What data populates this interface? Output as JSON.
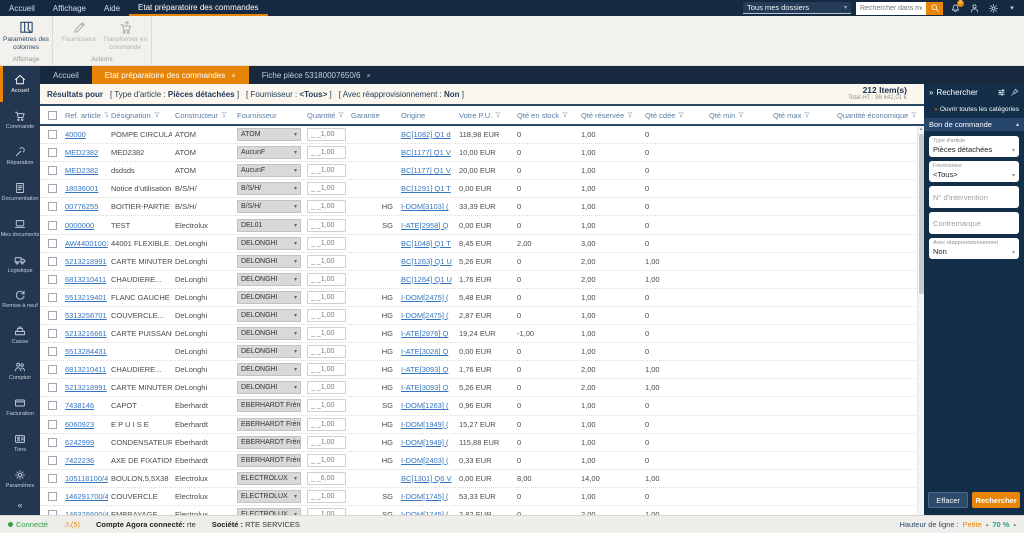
{
  "icons": {
    "close": "×",
    "caret_down": "▾",
    "caret_up": "▴",
    "chevrons_right": "»",
    "collapse": "«",
    "warning": "⚠"
  },
  "menubar": {
    "items": [
      "Accueil",
      "Affichage",
      "Aide"
    ],
    "active_item": "Etat préparatoire des commandes",
    "folder_filter": "Tous mes dossiers",
    "search_placeholder": "Rechercher dans mes dossiers",
    "bell_badge": "8"
  },
  "ribbon": {
    "groups": [
      {
        "label": "Affichage",
        "buttons": [
          {
            "label": "Paramètres des colonnes",
            "icon": "columns-settings-icon",
            "enabled": true
          }
        ]
      },
      {
        "label": "Actions",
        "buttons": [
          {
            "label": "Fournisseur",
            "icon": "pencil-icon",
            "enabled": false
          },
          {
            "label": "Transformer en commande",
            "icon": "cart-plus-icon",
            "enabled": false
          }
        ]
      }
    ]
  },
  "tabs": [
    {
      "label": "Accueil",
      "active": false,
      "closable": false
    },
    {
      "label": "Etat préparatoire des commandes",
      "active": true,
      "closable": true
    },
    {
      "label": "Fiche pièce 53180007650/6",
      "active": false,
      "closable": true
    }
  ],
  "sidebar": {
    "items": [
      {
        "label": "Accueil",
        "icon": "home-icon",
        "active": true
      },
      {
        "label": "Commande",
        "icon": "cart-icon",
        "active": false
      },
      {
        "label": "Réparation",
        "icon": "wrench-icon",
        "active": false
      },
      {
        "label": "Documentation",
        "icon": "document-icon",
        "active": false
      },
      {
        "label": "Mes documents",
        "icon": "laptop-icon",
        "active": false
      },
      {
        "label": "Logistique",
        "icon": "truck-icon",
        "active": false
      },
      {
        "label": "Remise à neuf",
        "icon": "renew-icon",
        "active": false
      },
      {
        "label": "Caisse",
        "icon": "cash-register-icon",
        "active": false
      },
      {
        "label": "Comptoir",
        "icon": "people-icon",
        "active": false
      },
      {
        "label": "Facturation",
        "icon": "credit-card-icon",
        "active": false
      },
      {
        "label": "Tiers",
        "icon": "id-card-icon",
        "active": false
      },
      {
        "label": "Paramètres",
        "icon": "gear-icon",
        "active": false
      }
    ]
  },
  "results_bar": {
    "prefix": "Résultats pour",
    "bracket_open": "[",
    "bracket_close": "]",
    "filters": [
      {
        "label": "Type d'article :",
        "value": "Pièces détachées"
      },
      {
        "label": "Fournisseur :",
        "value": "<Tous>"
      },
      {
        "label": "Avec réapprovisionnement :",
        "value": "Non"
      }
    ],
    "count": "212 Item(s)",
    "total": "Total HT : 86 642,01 €"
  },
  "table": {
    "columns": [
      {
        "label": "",
        "filter": false
      },
      {
        "label": "Ref. article",
        "filter": true
      },
      {
        "label": "Désignation",
        "filter": true
      },
      {
        "label": "Constructeur",
        "filter": true
      },
      {
        "label": "Fournisseur",
        "filter": false
      },
      {
        "label": "Quantité",
        "filter": true
      },
      {
        "label": "Garantie",
        "filter": false
      },
      {
        "label": "Origine",
        "filter": false
      },
      {
        "label": "Votre P.U.",
        "filter": true
      },
      {
        "label": "Qté en stock",
        "filter": true
      },
      {
        "label": "Qté réservée",
        "filter": true
      },
      {
        "label": "Qté cdée",
        "filter": true
      },
      {
        "label": "Qté min",
        "filter": true
      },
      {
        "label": "Qté max",
        "filter": true
      },
      {
        "label": "Quantité économique",
        "filter": true
      }
    ],
    "rows": [
      {
        "ref": "40000",
        "designation": "POMPE CIRCULATEAU...",
        "constructeur": "ATOM",
        "fournisseur": "ATOM",
        "quantite": "_ _1,00",
        "garantie": "",
        "origine": "BC[1082] Q1 d",
        "pu": "118,98 EUR",
        "stock": "0",
        "reservee": "1,00",
        "cdee": "0",
        "min": "",
        "max": "",
        "eco": ""
      },
      {
        "ref": "MED2382",
        "designation": "MED2382",
        "constructeur": "ATOM",
        "fournisseur": "AucunF",
        "quantite": "_ _1,00",
        "garantie": "",
        "origine": "BC[1177] Q1 V",
        "pu": "10,00 EUR",
        "stock": "0",
        "reservee": "1,00",
        "cdee": "0",
        "min": "",
        "max": "",
        "eco": ""
      },
      {
        "ref": "MED2382",
        "designation": "dsdsds",
        "constructeur": "ATOM",
        "fournisseur": "AucunF",
        "quantite": "_ _1,00",
        "garantie": "",
        "origine": "BC[1177] Q1 V",
        "pu": "20,00 EUR",
        "stock": "0",
        "reservee": "1,00",
        "cdee": "0",
        "min": "",
        "max": "",
        "eco": ""
      },
      {
        "ref": "18036001",
        "designation": "Notice d'utilisation",
        "constructeur": "B/S/H/",
        "fournisseur": "B/S/H/",
        "quantite": "_ _1,00",
        "garantie": "",
        "origine": "BC[1291] Q1 T",
        "pu": "0,00 EUR",
        "stock": "0",
        "reservee": "1,00",
        "cdee": "0",
        "min": "",
        "max": "",
        "eco": ""
      },
      {
        "ref": "00776255",
        "designation": "BOITIER-PARTIE AVANT",
        "constructeur": "B/S/H/",
        "fournisseur": "B/S/H/",
        "quantite": "_ _1,00",
        "garantie": "HG",
        "origine": "I-DOM[3103] (",
        "pu": "33,39 EUR",
        "stock": "0",
        "reservee": "1,00",
        "cdee": "0",
        "min": "",
        "max": "",
        "eco": ""
      },
      {
        "ref": "0000000",
        "designation": "TEST",
        "constructeur": "Electrolux",
        "fournisseur": "DEL01",
        "quantite": "_ _1,00",
        "garantie": "SG",
        "origine": "I-ATE[2958] Q",
        "pu": "0,00 EUR",
        "stock": "0",
        "reservee": "1,00",
        "cdee": "0",
        "min": "",
        "max": "",
        "eco": ""
      },
      {
        "ref": "AW44001001",
        "designation": "44001 FLEXIBLE...",
        "constructeur": "DeLonghi",
        "fournisseur": "DELONGHI",
        "quantite": "_ _1,00",
        "garantie": "",
        "origine": "BC[1048] Q1 T",
        "pu": "8,45 EUR",
        "stock": "2,00",
        "reservee": "3,00",
        "cdee": "0",
        "min": "",
        "max": "",
        "eco": ""
      },
      {
        "ref": "5213218991",
        "designation": "CARTE MINUTERIE...",
        "constructeur": "DeLonghi",
        "fournisseur": "DELONGHI",
        "quantite": "_ _1,00",
        "garantie": "",
        "origine": "BC[1263] Q1 U",
        "pu": "5,26 EUR",
        "stock": "0",
        "reservee": "2,00",
        "cdee": "1,00",
        "min": "",
        "max": "",
        "eco": ""
      },
      {
        "ref": "6813210411",
        "designation": "CHAUDIERE...",
        "constructeur": "DeLonghi",
        "fournisseur": "DELONGHI",
        "quantite": "_ _1,00",
        "garantie": "",
        "origine": "BC[1264] Q1 U",
        "pu": "1,76 EUR",
        "stock": "0",
        "reservee": "2,00",
        "cdee": "1,00",
        "min": "",
        "max": "",
        "eco": ""
      },
      {
        "ref": "5513219401",
        "designation": "FLANC GAUCHE",
        "constructeur": "DeLonghi",
        "fournisseur": "DELONGHI",
        "quantite": "_ _1,00",
        "garantie": "HG",
        "origine": "I-DOM[2475] (",
        "pu": "5,48 EUR",
        "stock": "0",
        "reservee": "1,00",
        "cdee": "0",
        "min": "",
        "max": "",
        "eco": ""
      },
      {
        "ref": "5313256701",
        "designation": "COUVERCLE...",
        "constructeur": "DeLonghi",
        "fournisseur": "DELONGHI",
        "quantite": "_ _1,00",
        "garantie": "HG",
        "origine": "I-DOM[2475] (",
        "pu": "2,87 EUR",
        "stock": "0",
        "reservee": "1,00",
        "cdee": "0",
        "min": "",
        "max": "",
        "eco": ""
      },
      {
        "ref": "5213216661",
        "designation": "CARTE PUISSANCE...",
        "constructeur": "DeLonghi",
        "fournisseur": "DELONGHI",
        "quantite": "_ _1,00",
        "garantie": "HG",
        "origine": "I-ATE[2976] Q",
        "pu": "19,24 EUR",
        "stock": "-1,00",
        "reservee": "1,00",
        "cdee": "0",
        "min": "",
        "max": "",
        "eco": ""
      },
      {
        "ref": "5513284431",
        "designation": "",
        "constructeur": "DeLonghi",
        "fournisseur": "DELONGHI",
        "quantite": "_ _1,00",
        "garantie": "HG",
        "origine": "I-ATE[3028] Q",
        "pu": "0,00 EUR",
        "stock": "0",
        "reservee": "1,00",
        "cdee": "0",
        "min": "",
        "max": "",
        "eco": ""
      },
      {
        "ref": "6813210411",
        "designation": "CHAUDIERE...",
        "constructeur": "DeLonghi",
        "fournisseur": "DELONGHI",
        "quantite": "_ _1,00",
        "garantie": "HG",
        "origine": "I-ATE[3093] Q",
        "pu": "1,76 EUR",
        "stock": "0",
        "reservee": "2,00",
        "cdee": "1,00",
        "min": "",
        "max": "",
        "eco": ""
      },
      {
        "ref": "5213218991",
        "designation": "CARTE MINUTERIE...",
        "constructeur": "DeLonghi",
        "fournisseur": "DELONGHI",
        "quantite": "_ _1,00",
        "garantie": "HG",
        "origine": "I-ATE[3093] Q",
        "pu": "5,26 EUR",
        "stock": "0",
        "reservee": "2,00",
        "cdee": "1,00",
        "min": "",
        "max": "",
        "eco": ""
      },
      {
        "ref": "7438146",
        "designation": "CAPOT",
        "constructeur": "Eberhardt",
        "fournisseur": "EBERHARDT Frères",
        "quantite": "_ _1,00",
        "garantie": "SG",
        "origine": "I-DOM[1263] (",
        "pu": "0,96 EUR",
        "stock": "0",
        "reservee": "1,00",
        "cdee": "0",
        "min": "",
        "max": "",
        "eco": ""
      },
      {
        "ref": "6060923",
        "designation": "E P U I S E",
        "constructeur": "Eberhardt",
        "fournisseur": "EBERHARDT Frères",
        "quantite": "_ _1,00",
        "garantie": "HG",
        "origine": "I-DOM[1949] (",
        "pu": "15,27 EUR",
        "stock": "0",
        "reservee": "1,00",
        "cdee": "0",
        "min": "",
        "max": "",
        "eco": ""
      },
      {
        "ref": "6242999",
        "designation": "CONDENSATEUR DE...",
        "constructeur": "Eberhardt",
        "fournisseur": "EBERHARDT Frères",
        "quantite": "_ _1,00",
        "garantie": "HG",
        "origine": "I-DOM[1949] (",
        "pu": "115,88 EUR",
        "stock": "0",
        "reservee": "1,00",
        "cdee": "0",
        "min": "",
        "max": "",
        "eco": ""
      },
      {
        "ref": "7422236",
        "designation": "AXE DE FIXATION...",
        "constructeur": "Eberhardt",
        "fournisseur": "EBERHARDT Frères",
        "quantite": "_ _1,00",
        "garantie": "HG",
        "origine": "I-DOM[2403] (",
        "pu": "0,33 EUR",
        "stock": "0",
        "reservee": "1,00",
        "cdee": "0",
        "min": "",
        "max": "",
        "eco": ""
      },
      {
        "ref": "105118100/4",
        "designation": "BOULON,5,5X38",
        "constructeur": "Electrolux",
        "fournisseur": "ELECTROLUX",
        "quantite": "_ _6,00",
        "garantie": "",
        "origine": "BC[1301] Q6 V",
        "pu": "0,00 EUR",
        "stock": "8,00",
        "reservee": "14,00",
        "cdee": "1,00",
        "min": "",
        "max": "",
        "eco": ""
      },
      {
        "ref": "146291700/4",
        "designation": "COUVERCLE",
        "constructeur": "Electrolux",
        "fournisseur": "ELECTROLUX",
        "quantite": "_ _1,00",
        "garantie": "SG",
        "origine": "I-DOM[1745] (",
        "pu": "53,33 EUR",
        "stock": "0",
        "reservee": "1,00",
        "cdee": "0",
        "min": "",
        "max": "",
        "eco": ""
      },
      {
        "ref": "146376600/4",
        "designation": "EMBRAYAGE",
        "constructeur": "Electrolux",
        "fournisseur": "ELECTROLUX",
        "quantite": "_ _1,00",
        "garantie": "SG",
        "origine": "I-DOM[1745] (",
        "pu": "2,82 EUR",
        "stock": "0",
        "reservee": "2,00",
        "cdee": "1,00",
        "min": "",
        "max": "",
        "eco": ""
      }
    ]
  },
  "search_panel": {
    "title": "Rechercher",
    "open_all": "Ouvrir toutes les catégories",
    "section": "Bon de commande",
    "fields": [
      {
        "type": "select",
        "label": "Type d'article",
        "value": "Pièces détachées"
      },
      {
        "type": "select",
        "label": "Fournisseur",
        "value": "<Tous>"
      },
      {
        "type": "text",
        "placeholder": "N° d'intervention"
      },
      {
        "type": "text",
        "placeholder": "Contremarque"
      },
      {
        "type": "select",
        "label": "Avec réapprovisionnement",
        "value": "Non"
      }
    ],
    "clear_label": "Effacer",
    "search_label": "Rechercher"
  },
  "status_bar": {
    "connected": "Connecté",
    "alerts": "(5)",
    "account_label": "Compte Agora connecté:",
    "account_value": "rte",
    "company_label": "Société :",
    "company_value": "RTE SERVICES",
    "row_height_label": "Hauteur de ligne :",
    "row_height_value": "Petite",
    "zoom": "70 %"
  },
  "colors": {
    "accent": "#e98506",
    "navy": "#152940",
    "link": "#3576bf",
    "connected_green": "#2e9e44",
    "zoom_teal": "#1fa28c"
  }
}
